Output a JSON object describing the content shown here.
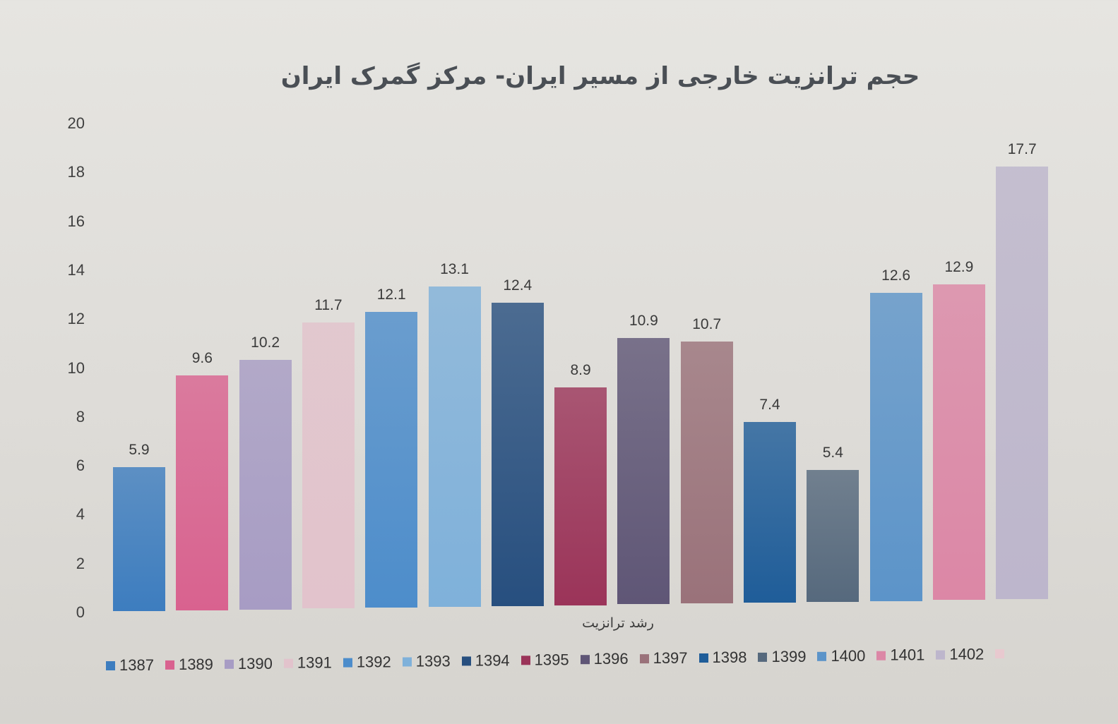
{
  "chart_data": {
    "type": "bar",
    "title": "حجم ترانزیت خارجی از مسیر ایران- مرکز گمرک ایران",
    "xlabel": "رشد ترانزیت",
    "ylabel": "",
    "ylim": [
      0,
      20
    ],
    "yticks": [
      0,
      2,
      4,
      6,
      8,
      10,
      12,
      14,
      16,
      18,
      20
    ],
    "grid": false,
    "legend_position": "bottom",
    "categories": [
      "رشد ترانزیت"
    ],
    "series": [
      {
        "name": "1387",
        "values": [
          5.9
        ],
        "color": "#3d7dbf"
      },
      {
        "name": "1389",
        "values": [
          9.6
        ],
        "color": "#d9628f"
      },
      {
        "name": "1390",
        "values": [
          10.2
        ],
        "color": "#a79cc4"
      },
      {
        "name": "1391",
        "values": [
          11.7
        ],
        "color": "#e2c3cc"
      },
      {
        "name": "1392",
        "values": [
          12.1
        ],
        "color": "#4d8dcb"
      },
      {
        "name": "1393",
        "values": [
          13.1
        ],
        "color": "#7fb1da"
      },
      {
        "name": "1394",
        "values": [
          12.4
        ],
        "color": "#274f7f"
      },
      {
        "name": "1395",
        "values": [
          8.9
        ],
        "color": "#9b3459"
      },
      {
        "name": "1396",
        "values": [
          10.9
        ],
        "color": "#5f5676"
      },
      {
        "name": "1397",
        "values": [
          10.7
        ],
        "color": "#9a727a"
      },
      {
        "name": "1398",
        "values": [
          7.4
        ],
        "color": "#1f5d99"
      },
      {
        "name": "1399",
        "values": [
          5.4
        ],
        "color": "#56697d"
      },
      {
        "name": "1400",
        "values": [
          12.6
        ],
        "color": "#5c94c9"
      },
      {
        "name": "1401",
        "values": [
          12.9
        ],
        "color": "#dc87a6"
      },
      {
        "name": "1402",
        "values": [
          17.7
        ],
        "color": "#bdb6cc"
      }
    ],
    "value_labels": [
      "5.9",
      "9.6",
      "10.2",
      "11.7",
      "12.1",
      "13.1",
      "12.4",
      "8.9",
      "10.9",
      "10.7",
      "7.4",
      "5.4",
      "12.6",
      "12.9",
      "17.7"
    ]
  },
  "legend_extra_swatch": "#e8c9cf"
}
